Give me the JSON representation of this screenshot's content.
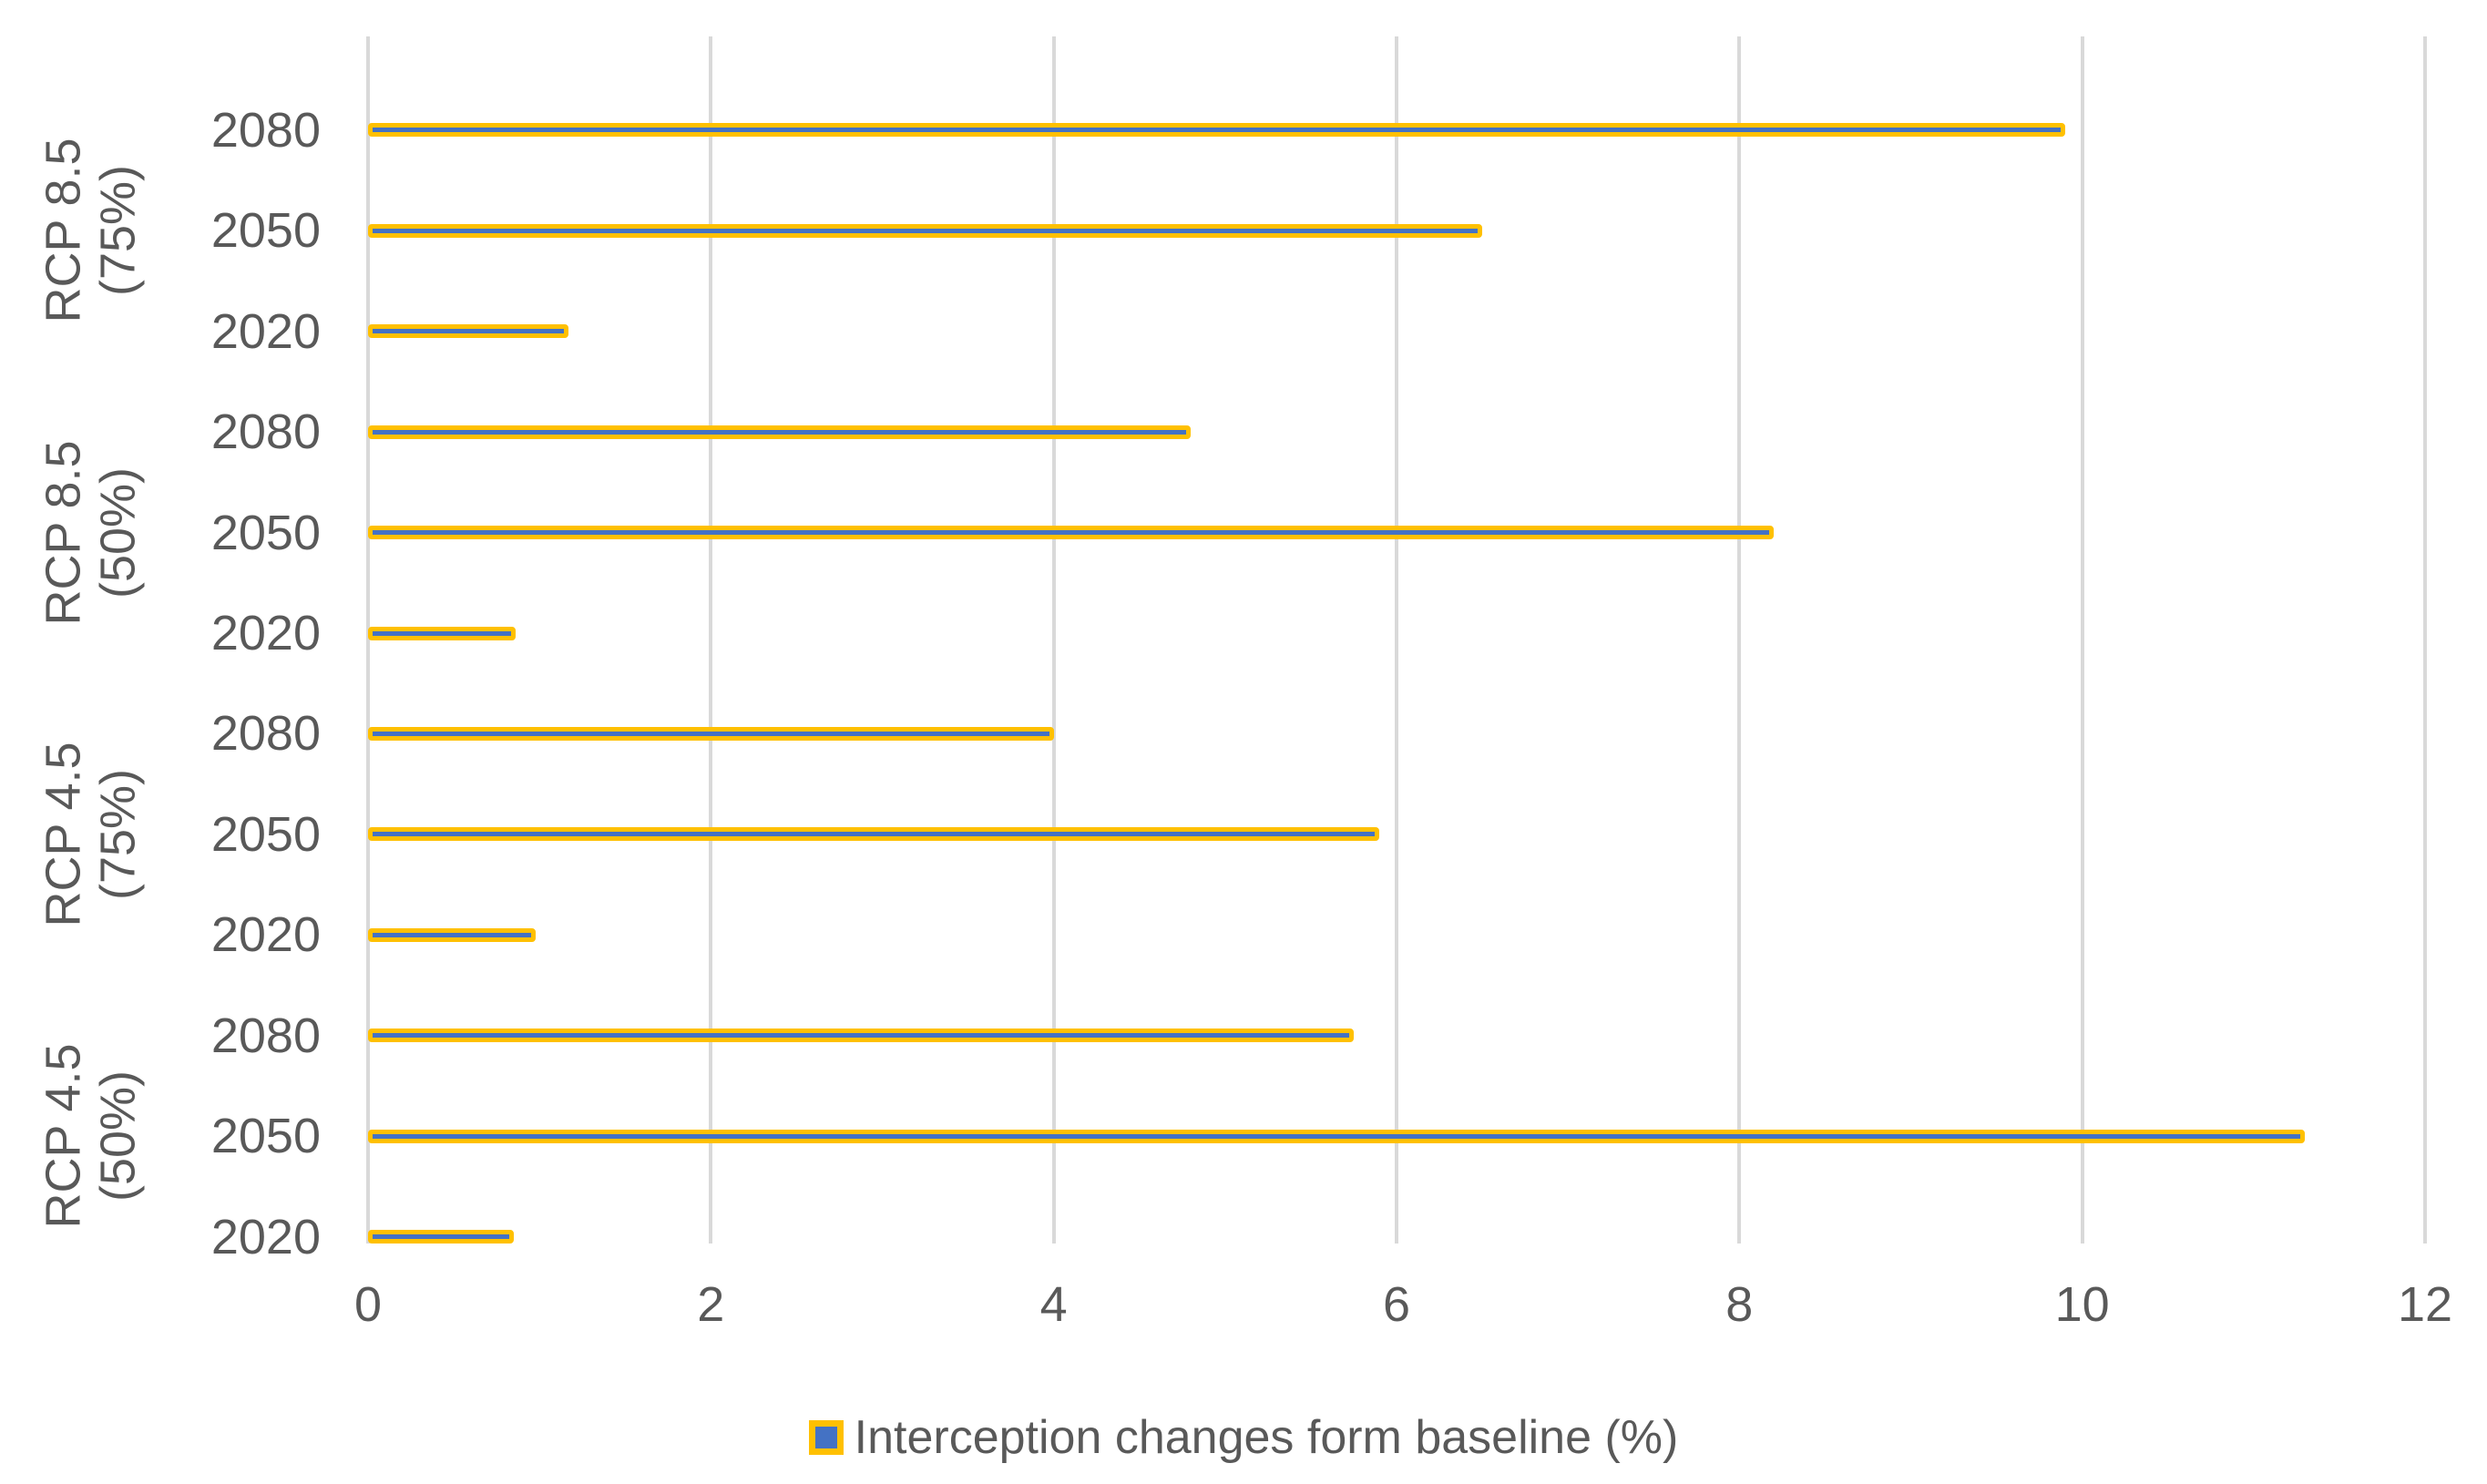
{
  "chart_data": {
    "type": "bar",
    "orientation": "horizontal",
    "title": "",
    "xlabel": "",
    "ylabel": "",
    "xlim": [
      0,
      12
    ],
    "x_ticks": [
      "0",
      "2",
      "4",
      "6",
      "8",
      "10",
      "12"
    ],
    "grid": true,
    "legend_position": "bottom",
    "legend_label": "Interception changes form baseline (%)",
    "groups": [
      {
        "label": "RCP 8.5 (75%)",
        "label_lines": [
          "RCP 8.5",
          "(75%)"
        ],
        "bars": [
          {
            "category": "2080",
            "value": 9.9
          },
          {
            "category": "2050",
            "value": 6.5
          },
          {
            "category": "2020",
            "value": 1.17
          }
        ]
      },
      {
        "label": "RCP 8.5 (50%)",
        "label_lines": [
          "RCP 8.5",
          "(50%)"
        ],
        "bars": [
          {
            "category": "2080",
            "value": 4.8
          },
          {
            "category": "2050",
            "value": 8.2
          },
          {
            "category": "2020",
            "value": 0.86
          }
        ]
      },
      {
        "label": "RCP 4.5 (75%)",
        "label_lines": [
          "RCP 4.5",
          "(75%)"
        ],
        "bars": [
          {
            "category": "2080",
            "value": 4.0
          },
          {
            "category": "2050",
            "value": 5.9
          },
          {
            "category": "2020",
            "value": 0.98
          }
        ]
      },
      {
        "label": "RCP 4.5 (50%)",
        "label_lines": [
          "RCP 4.5",
          "(50%)"
        ],
        "bars": [
          {
            "category": "2080",
            "value": 5.75
          },
          {
            "category": "2050",
            "value": 11.3
          },
          {
            "category": "2020",
            "value": 0.85
          }
        ]
      }
    ],
    "colors": {
      "bar_fill": "#4472C4",
      "bar_border": "#FFC000",
      "gridline": "#D9D9D9",
      "axis_text": "#595959",
      "background": "#FFFFFF"
    }
  }
}
